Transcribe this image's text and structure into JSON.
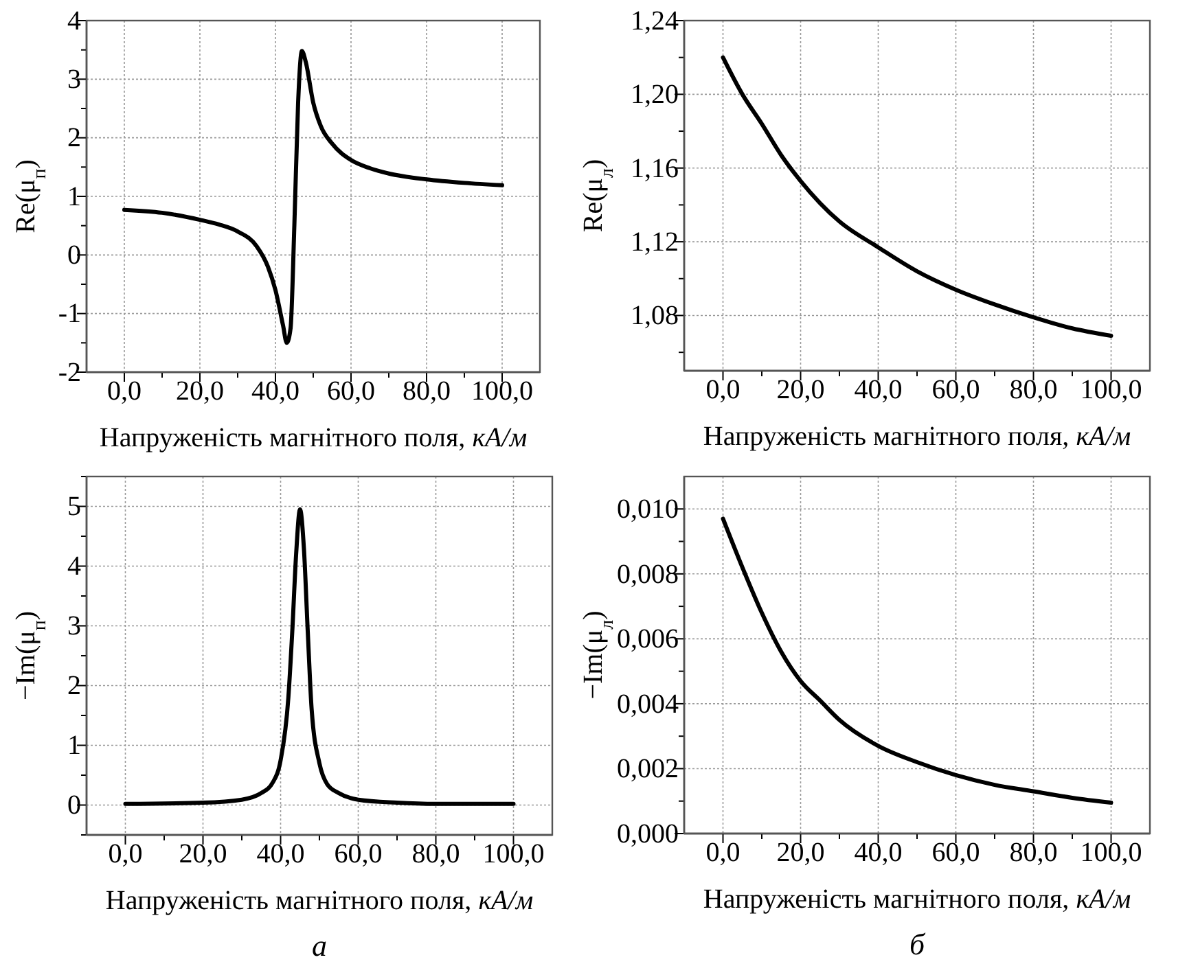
{
  "chart_data": [
    {
      "type": "line",
      "ylabel": "Re(μ$_{п}$)",
      "xlabel": "Напруженість магнітного поля, кА/м",
      "xlim": [
        -10,
        110
      ],
      "ylim": [
        -2,
        4
      ],
      "xticks": [
        {
          "value": 0,
          "label": "0,0"
        },
        {
          "value": 10,
          "label": null
        },
        {
          "value": 20,
          "label": "20,0"
        },
        {
          "value": 30,
          "label": null
        },
        {
          "value": 40,
          "label": "40,0"
        },
        {
          "value": 50,
          "label": null
        },
        {
          "value": 60,
          "label": "60,0"
        },
        {
          "value": 70,
          "label": null
        },
        {
          "value": 80,
          "label": "80,0"
        },
        {
          "value": 90,
          "label": null
        },
        {
          "value": 100,
          "label": "100,0"
        }
      ],
      "yticks": [
        -2,
        {
          "value": -1.5,
          "label": null
        },
        -1,
        {
          "value": -0.5,
          "label": null
        },
        0,
        {
          "value": 0.5,
          "label": null
        },
        1,
        {
          "value": 1.5,
          "label": null
        },
        2,
        {
          "value": 2.5,
          "label": null
        },
        3,
        {
          "value": 3.5,
          "label": null
        },
        4
      ],
      "grid": true,
      "line_style": "solid",
      "marker": "none",
      "series": [
        {
          "color": "#000000",
          "x": [
            0,
            10,
            20,
            25,
            30,
            35,
            38,
            40,
            42,
            43,
            44,
            45,
            46,
            47,
            48,
            50,
            52,
            55,
            60,
            65,
            70,
            80,
            90,
            100
          ],
          "values": [
            0.77,
            0.72,
            0.6,
            0.52,
            0.4,
            0.15,
            -0.2,
            -0.6,
            -1.2,
            -1.5,
            -1.25,
            0.5,
            2.6,
            3.48,
            3.3,
            2.6,
            2.2,
            1.9,
            1.62,
            1.48,
            1.39,
            1.29,
            1.23,
            1.19
          ]
        }
      ]
    },
    {
      "type": "line",
      "ylabel": "Re(μ$_{л}$)",
      "xlabel": "Напруженість магнітного поля, кА/м",
      "xlim": [
        -10,
        110
      ],
      "ylim": [
        1.05,
        1.24
      ],
      "xticks": [
        {
          "value": 0,
          "label": "0,0"
        },
        {
          "value": 10,
          "label": null
        },
        {
          "value": 20,
          "label": "20,0"
        },
        {
          "value": 30,
          "label": null
        },
        {
          "value": 40,
          "label": "40,0"
        },
        {
          "value": 50,
          "label": null
        },
        {
          "value": 60,
          "label": "60,0"
        },
        {
          "value": 70,
          "label": null
        },
        {
          "value": 80,
          "label": "80,0"
        },
        {
          "value": 90,
          "label": null
        },
        {
          "value": 100,
          "label": "100,0"
        }
      ],
      "yticks": [
        {
          "value": 1.06,
          "label": null
        },
        {
          "value": 1.08,
          "label": "1,08"
        },
        {
          "value": 1.1,
          "label": null
        },
        {
          "value": 1.12,
          "label": "1,12"
        },
        {
          "value": 1.14,
          "label": null
        },
        {
          "value": 1.16,
          "label": "1,16"
        },
        {
          "value": 1.18,
          "label": null
        },
        {
          "value": 1.2,
          "label": "1,20"
        },
        {
          "value": 1.22,
          "label": null
        },
        {
          "value": 1.24,
          "label": "1,24"
        }
      ],
      "grid": true,
      "line_style": "solid",
      "marker": "none",
      "series": [
        {
          "color": "#000000",
          "x": [
            0,
            5,
            10,
            15,
            20,
            30,
            40,
            50,
            60,
            70,
            80,
            90,
            100
          ],
          "values": [
            1.22,
            1.2,
            1.184,
            1.167,
            1.153,
            1.131,
            1.117,
            1.104,
            1.094,
            1.086,
            1.079,
            1.073,
            1.069
          ]
        }
      ]
    },
    {
      "type": "line",
      "ylabel": "−Im(μ$_{п}$)",
      "xlabel": "Напруженість магнітного поля, кА/м",
      "xlim": [
        -10,
        110
      ],
      "ylim": [
        -0.5,
        5.5
      ],
      "xticks": [
        {
          "value": 0,
          "label": "0,0"
        },
        {
          "value": 10,
          "label": null
        },
        {
          "value": 20,
          "label": "20,0"
        },
        {
          "value": 30,
          "label": null
        },
        {
          "value": 40,
          "label": "40,0"
        },
        {
          "value": 50,
          "label": null
        },
        {
          "value": 60,
          "label": "60,0"
        },
        {
          "value": 70,
          "label": null
        },
        {
          "value": 80,
          "label": "80,0"
        },
        {
          "value": 90,
          "label": null
        },
        {
          "value": 100,
          "label": "100,0"
        }
      ],
      "yticks": [
        {
          "value": -0.5,
          "label": null
        },
        0,
        {
          "value": 0.5,
          "label": null
        },
        1,
        {
          "value": 1.5,
          "label": null
        },
        2,
        {
          "value": 2.5,
          "label": null
        },
        3,
        {
          "value": 3.5,
          "label": null
        },
        4,
        {
          "value": 4.5,
          "label": null
        },
        5,
        {
          "value": 5.5,
          "label": null
        }
      ],
      "grid": true,
      "line_style": "solid",
      "marker": "none",
      "annotations": [
        "а"
      ],
      "series": [
        {
          "color": "#000000",
          "x": [
            0,
            20,
            30,
            35,
            38,
            40,
            42,
            43,
            44,
            45,
            46,
            47,
            48,
            50,
            52,
            55,
            60,
            70,
            80,
            100
          ],
          "values": [
            0.02,
            0.04,
            0.09,
            0.2,
            0.38,
            0.75,
            1.8,
            2.9,
            4.2,
            4.95,
            4.3,
            2.9,
            1.6,
            0.7,
            0.35,
            0.2,
            0.09,
            0.04,
            0.02,
            0.02
          ]
        }
      ]
    },
    {
      "type": "line",
      "ylabel": "−Im(μ$_{л}$)",
      "xlabel": "Напруженість магнітного поля, кА/м",
      "xlim": [
        -10,
        110
      ],
      "ylim": [
        0,
        0.011
      ],
      "xticks": [
        {
          "value": 0,
          "label": "0,0"
        },
        {
          "value": 10,
          "label": null
        },
        {
          "value": 20,
          "label": "20,0"
        },
        {
          "value": 30,
          "label": null
        },
        {
          "value": 40,
          "label": "40,0"
        },
        {
          "value": 50,
          "label": null
        },
        {
          "value": 60,
          "label": "60,0"
        },
        {
          "value": 70,
          "label": null
        },
        {
          "value": 80,
          "label": "80,0"
        },
        {
          "value": 90,
          "label": null
        },
        {
          "value": 100,
          "label": "100,0"
        }
      ],
      "yticks": [
        {
          "value": 0,
          "label": "0,000"
        },
        {
          "value": 0.001,
          "label": null
        },
        {
          "value": 0.002,
          "label": "0,002"
        },
        {
          "value": 0.003,
          "label": null
        },
        {
          "value": 0.004,
          "label": "0,004"
        },
        {
          "value": 0.005,
          "label": null
        },
        {
          "value": 0.006,
          "label": "0,006"
        },
        {
          "value": 0.007,
          "label": null
        },
        {
          "value": 0.008,
          "label": "0,008"
        },
        {
          "value": 0.009,
          "label": null
        },
        {
          "value": 0.01,
          "label": "0,010"
        }
      ],
      "grid": true,
      "line_style": "solid",
      "marker": "none",
      "annotations": [
        "б"
      ],
      "series": [
        {
          "color": "#000000",
          "x": [
            0,
            5,
            10,
            15,
            20,
            25,
            30,
            40,
            50,
            60,
            70,
            80,
            90,
            100
          ],
          "values": [
            0.0097,
            0.0082,
            0.0068,
            0.0056,
            0.0047,
            0.0041,
            0.0035,
            0.0027,
            0.0022,
            0.0018,
            0.0015,
            0.0013,
            0.0011,
            0.00095
          ]
        }
      ]
    }
  ]
}
